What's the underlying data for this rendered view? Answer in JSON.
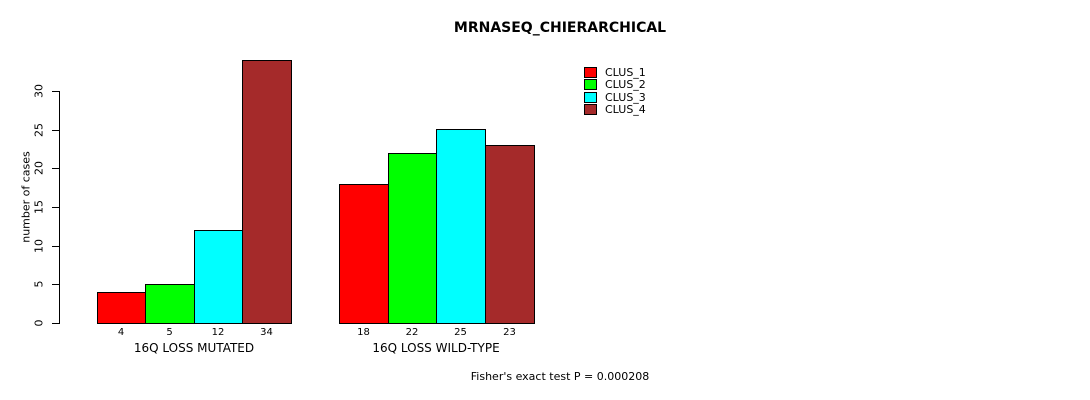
{
  "chart_data": {
    "type": "bar",
    "title": "MRNASEQ_CHIERARCHICAL",
    "ylabel": "number of cases",
    "xlabel": "",
    "groups": [
      "16Q LOSS MUTATED",
      "16Q LOSS WILD-TYPE"
    ],
    "series": [
      {
        "name": "CLUS_1",
        "color": "#ff0000",
        "values": [
          4,
          18
        ]
      },
      {
        "name": "CLUS_2",
        "color": "#00ff00",
        "values": [
          5,
          22
        ]
      },
      {
        "name": "CLUS_3",
        "color": "#00ffff",
        "values": [
          12,
          25
        ]
      },
      {
        "name": "CLUS_4",
        "color": "#a52a2a",
        "values": [
          34,
          23
        ]
      }
    ],
    "bar_value_labels": [
      [
        4,
        5,
        12,
        34
      ],
      [
        18,
        22,
        25,
        23
      ]
    ],
    "yticks": [
      0,
      5,
      10,
      15,
      20,
      25,
      30
    ],
    "ylim": [
      0,
      34
    ],
    "grid": false,
    "legend_position": "top-right",
    "legend_entries": [
      "CLUS_1",
      "CLUS_2",
      "CLUS_3",
      "CLUS_4"
    ],
    "annotation": "Fisher's exact test P = 0.000208",
    "axis_color": "#000000",
    "bar_border_color": "#000000",
    "background_color": "#ffffff"
  }
}
